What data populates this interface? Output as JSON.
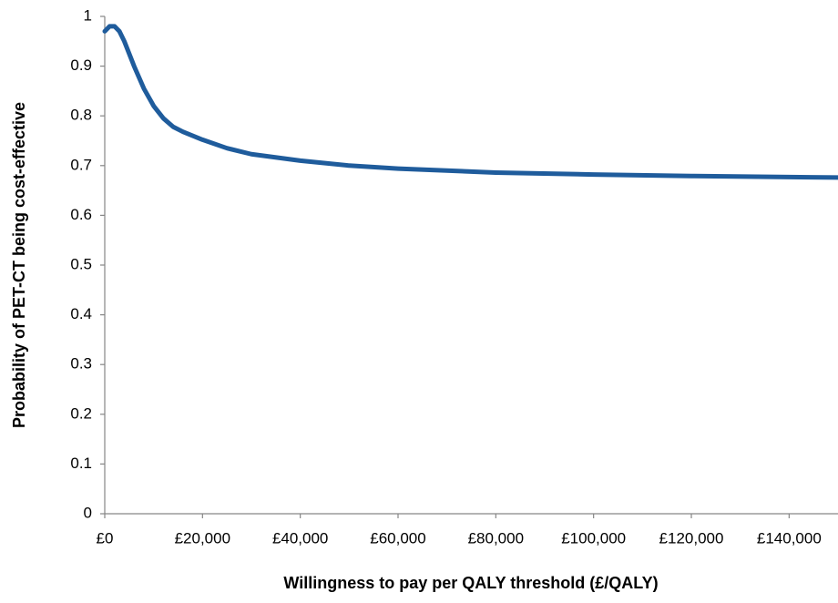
{
  "chart_data": {
    "type": "line",
    "x_label": "Willingness to pay per QALY threshold (£/QALY)",
    "y_label": "Probability of PET-CT  being cost-effective",
    "x": [
      0,
      1000,
      2000,
      3000,
      4000,
      6000,
      8000,
      10000,
      12000,
      14000,
      16000,
      20000,
      25000,
      30000,
      40000,
      50000,
      60000,
      80000,
      100000,
      120000,
      140000,
      150000
    ],
    "series": [
      {
        "color": "#1f5c9c",
        "values": [
          0.97,
          0.98,
          0.98,
          0.97,
          0.95,
          0.9,
          0.855,
          0.82,
          0.795,
          0.778,
          0.768,
          0.752,
          0.735,
          0.723,
          0.71,
          0.7,
          0.694,
          0.686,
          0.682,
          0.679,
          0.677,
          0.676
        ]
      }
    ],
    "xlim": [
      0,
      150000
    ],
    "xticks": [
      {
        "value": 0,
        "label": "£0"
      },
      {
        "value": 20000,
        "label": "£20,000"
      },
      {
        "value": 40000,
        "label": "£40,000"
      },
      {
        "value": 60000,
        "label": "£60,000"
      },
      {
        "value": 80000,
        "label": "£80,000"
      },
      {
        "value": 100000,
        "label": "£100,000"
      },
      {
        "value": 120000,
        "label": "£120,000"
      },
      {
        "value": 140000,
        "label": "£140,000"
      }
    ],
    "ylim": [
      0,
      1
    ],
    "yticks": [
      0,
      0.1,
      0.2,
      0.3,
      0.4,
      0.5,
      0.6,
      0.7,
      0.8,
      0.9,
      1
    ],
    "grid": false
  }
}
